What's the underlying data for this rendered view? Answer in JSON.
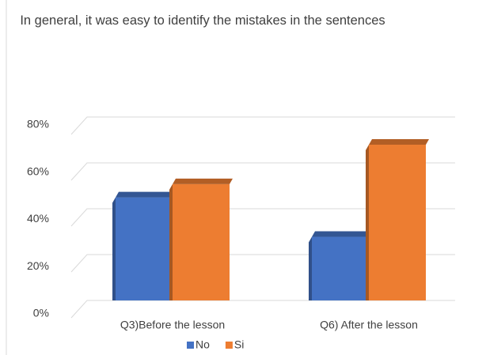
{
  "chart_data": {
    "type": "bar3d",
    "title": "In general, it was easy to identify the mistakes in the sentences",
    "categories": [
      "Q3)Before the lesson",
      "Q6) After the lesson"
    ],
    "series": [
      {
        "name": "No",
        "color": "#4472c4",
        "values": [
          47,
          29
        ]
      },
      {
        "name": "Si",
        "color": "#ed7d31",
        "values": [
          53,
          71
        ]
      }
    ],
    "ylim": [
      0,
      80
    ],
    "yticks": [
      {
        "value": 0,
        "label": "0%"
      },
      {
        "value": 20,
        "label": "20%"
      },
      {
        "value": 40,
        "label": "40%"
      },
      {
        "value": 60,
        "label": "60%"
      },
      {
        "value": 80,
        "label": "80%"
      }
    ],
    "grid": true,
    "legend": "bottom"
  }
}
